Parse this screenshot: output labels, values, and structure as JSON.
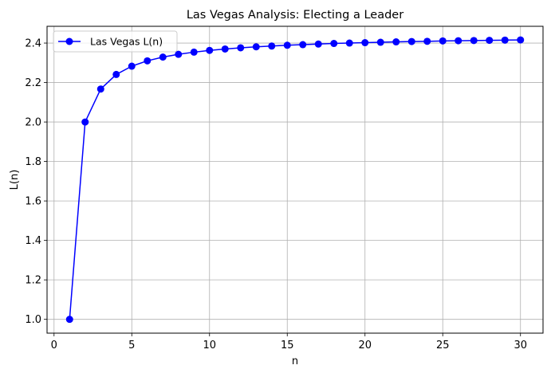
{
  "chart_data": {
    "type": "line",
    "title": "Las Vegas Analysis: Electing a Leader",
    "xlabel": "n",
    "ylabel": "L(n)",
    "xlim": [
      -0.45,
      31.45
    ],
    "ylim": [
      0.93,
      2.485
    ],
    "xticks": [
      0,
      5,
      10,
      15,
      20,
      25,
      30
    ],
    "yticks": [
      1.0,
      1.2,
      1.4,
      1.6,
      1.8,
      2.0,
      2.2,
      2.4
    ],
    "ytick_labels": [
      "1.0",
      "1.2",
      "1.4",
      "1.6",
      "1.8",
      "2.0",
      "2.2",
      "2.4"
    ],
    "xtick_labels": [
      "0",
      "5",
      "10",
      "15",
      "20",
      "25",
      "30"
    ],
    "grid": true,
    "legend_position": "top-left",
    "series": [
      {
        "name": "Las Vegas L(n)",
        "color": "#0000ff",
        "marker": "circle",
        "x": [
          1,
          2,
          3,
          4,
          5,
          6,
          7,
          8,
          9,
          10,
          11,
          12,
          13,
          14,
          15,
          16,
          17,
          18,
          19,
          20,
          21,
          22,
          23,
          24,
          25,
          26,
          27,
          28,
          29,
          30
        ],
        "y": [
          1.0,
          2.0,
          2.167,
          2.241,
          2.283,
          2.31,
          2.329,
          2.343,
          2.354,
          2.363,
          2.37,
          2.376,
          2.381,
          2.385,
          2.389,
          2.392,
          2.395,
          2.398,
          2.4,
          2.402,
          2.404,
          2.406,
          2.408,
          2.409,
          2.411,
          2.412,
          2.413,
          2.414,
          2.415,
          2.416
        ]
      }
    ]
  }
}
